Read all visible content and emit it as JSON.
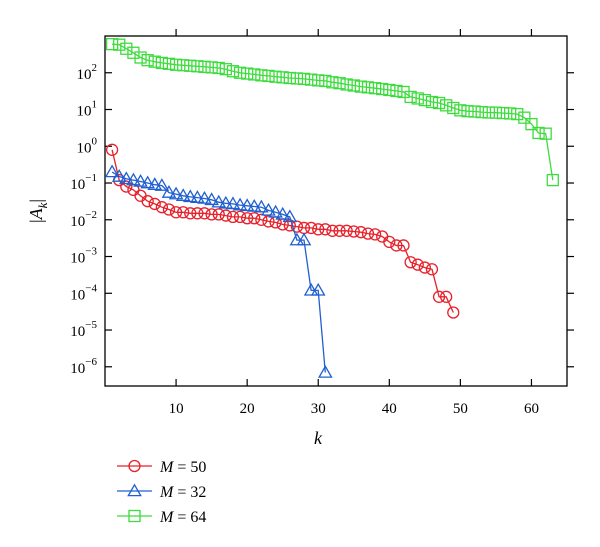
{
  "chart_data": {
    "type": "line",
    "title": "",
    "xlabel": "k",
    "ylabel": "|A_k|",
    "xlim": [
      0,
      65
    ],
    "ylim": [
      3e-07,
      1000
    ],
    "y_scale": "log",
    "x_ticks": [
      10,
      20,
      30,
      40,
      50,
      60
    ],
    "x_tick_labels": [
      "10",
      "20",
      "30",
      "40",
      "50",
      "60"
    ],
    "y_ticks": [
      1e-06,
      1e-05,
      0.0001,
      0.001,
      0.01,
      0.1,
      1,
      10,
      100
    ],
    "y_tick_labels": [
      {
        "base": "10",
        "exp": "−6"
      },
      {
        "base": "10",
        "exp": "−5"
      },
      {
        "base": "10",
        "exp": "−4"
      },
      {
        "base": "10",
        "exp": "−3"
      },
      {
        "base": "10",
        "exp": "−2"
      },
      {
        "base": "10",
        "exp": "−1"
      },
      {
        "base": "10",
        "exp": "0"
      },
      {
        "base": "10",
        "exp": "1"
      },
      {
        "base": "10",
        "exp": "2"
      }
    ],
    "grid": false,
    "legend_position": "bottom-left, below plot",
    "series": [
      {
        "name": "M = 50",
        "name_italic": "M",
        "name_rest": " = 50",
        "color": "#e8202a",
        "marker": "circle",
        "x": [
          1,
          2,
          3,
          4,
          5,
          6,
          7,
          8,
          9,
          10,
          11,
          12,
          13,
          14,
          15,
          16,
          17,
          18,
          19,
          20,
          21,
          22,
          23,
          24,
          25,
          26,
          27,
          28,
          29,
          30,
          31,
          32,
          33,
          34,
          35,
          36,
          37,
          38,
          39,
          40,
          41,
          42,
          43,
          44,
          45,
          46,
          47,
          48,
          49
        ],
        "y": [
          0.8,
          0.12,
          0.08,
          0.065,
          0.045,
          0.032,
          0.027,
          0.022,
          0.019,
          0.016,
          0.016,
          0.015,
          0.015,
          0.015,
          0.014,
          0.014,
          0.013,
          0.012,
          0.012,
          0.011,
          0.011,
          0.01,
          0.009,
          0.0085,
          0.0075,
          0.007,
          0.0065,
          0.006,
          0.006,
          0.0055,
          0.0055,
          0.005,
          0.005,
          0.005,
          0.0048,
          0.0046,
          0.0042,
          0.004,
          0.0035,
          0.0025,
          0.002,
          0.002,
          0.0007,
          0.0006,
          0.0005,
          0.00045,
          8e-05,
          8e-05,
          3e-05
        ]
      },
      {
        "name": "M = 32",
        "name_italic": "M",
        "name_rest": " = 32",
        "color": "#1f5fd0",
        "marker": "triangle",
        "x": [
          1,
          2,
          3,
          4,
          5,
          6,
          7,
          8,
          9,
          10,
          11,
          12,
          13,
          14,
          15,
          16,
          17,
          18,
          19,
          20,
          21,
          22,
          23,
          24,
          25,
          26,
          27,
          28,
          29,
          30,
          31
        ],
        "y": [
          0.2,
          0.15,
          0.13,
          0.12,
          0.11,
          0.1,
          0.09,
          0.085,
          0.055,
          0.05,
          0.045,
          0.042,
          0.04,
          0.038,
          0.035,
          0.03,
          0.028,
          0.027,
          0.025,
          0.024,
          0.023,
          0.022,
          0.018,
          0.016,
          0.014,
          0.012,
          0.0028,
          0.0028,
          0.00012,
          0.00012,
          7e-07
        ]
      },
      {
        "name": "M = 64",
        "name_italic": "M",
        "name_rest": " = 64",
        "color": "#3ddc3d",
        "marker": "square",
        "x": [
          1,
          2,
          3,
          4,
          5,
          6,
          7,
          8,
          9,
          10,
          11,
          12,
          13,
          14,
          15,
          16,
          17,
          18,
          19,
          20,
          21,
          22,
          23,
          24,
          25,
          26,
          27,
          28,
          29,
          30,
          31,
          32,
          33,
          34,
          35,
          36,
          37,
          38,
          39,
          40,
          41,
          42,
          43,
          44,
          45,
          46,
          47,
          48,
          49,
          50,
          51,
          52,
          53,
          54,
          55,
          56,
          57,
          58,
          59,
          60,
          61,
          62,
          63
        ],
        "y": [
          600,
          580,
          450,
          350,
          260,
          220,
          200,
          185,
          175,
          165,
          160,
          155,
          150,
          145,
          140,
          135,
          125,
          110,
          100,
          95,
          90,
          85,
          82,
          78,
          75,
          72,
          70,
          68,
          65,
          62,
          60,
          55,
          52,
          48,
          45,
          42,
          40,
          38,
          36,
          34,
          32,
          30,
          22,
          20,
          18,
          16,
          15,
          13,
          11,
          9.5,
          9,
          8.8,
          8.5,
          8.3,
          8.2,
          8,
          7.8,
          7.5,
          6,
          4,
          2.3,
          2.2,
          0.12
        ]
      }
    ]
  }
}
